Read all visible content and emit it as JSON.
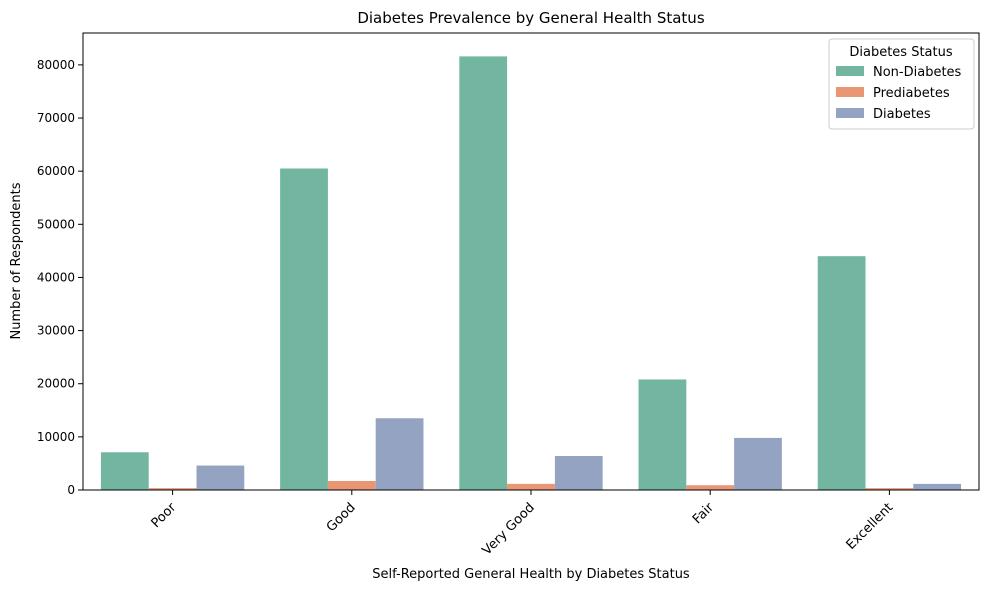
{
  "chart_data": {
    "type": "bar",
    "title": "Diabetes Prevalence by General Health Status",
    "xlabel": "Self-Reported General Health by Diabetes Status",
    "ylabel": "Number of Respondents",
    "categories": [
      "Poor",
      "Good",
      "Very Good",
      "Fair",
      "Excellent"
    ],
    "series": [
      {
        "name": "Non-Diabetes",
        "color": "#72b6a1",
        "values": [
          7100,
          60500,
          81600,
          20800,
          44000
        ]
      },
      {
        "name": "Prediabetes",
        "color": "#e99675",
        "values": [
          350,
          1700,
          1150,
          900,
          350
        ]
      },
      {
        "name": "Diabetes",
        "color": "#95a3c3",
        "values": [
          4600,
          13500,
          6400,
          9800,
          1150
        ]
      }
    ],
    "ylim": [
      0,
      86000
    ],
    "yticks": [
      0,
      10000,
      20000,
      30000,
      40000,
      50000,
      60000,
      70000,
      80000
    ],
    "grid": false,
    "legend": {
      "title": "Diabetes Status",
      "placement": "top-right"
    }
  }
}
